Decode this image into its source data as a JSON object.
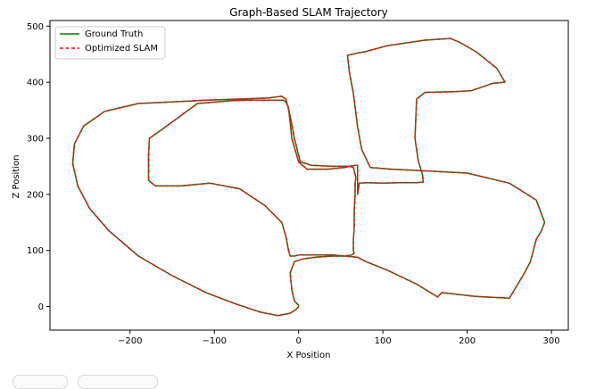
{
  "chart_data": {
    "type": "line",
    "title": "Graph-Based SLAM Trajectory",
    "xlabel": "X Position",
    "ylabel": "Z Position",
    "xlim": [
      -295,
      320
    ],
    "ylim": [
      -42,
      510
    ],
    "xticks": [
      -200,
      -100,
      0,
      100,
      200,
      300
    ],
    "yticks": [
      0,
      100,
      200,
      300,
      400,
      500
    ],
    "grid": false,
    "legend_position": "upper-left",
    "series": [
      {
        "name": "Ground Truth",
        "color": "#008000",
        "style": "solid",
        "x": [
          0,
          -3,
          -10,
          -25,
          -45,
          -75,
          -110,
          -150,
          -190,
          -225,
          -248,
          -262,
          -268,
          -266,
          -255,
          -230,
          -190,
          -150,
          -110,
          -70,
          -35,
          -20,
          -15,
          -10,
          -5,
          0,
          2,
          15,
          40,
          60,
          68,
          70,
          70,
          72,
          80,
          100,
          120,
          140,
          148,
          147,
          142,
          138,
          140,
          150,
          185,
          205,
          215,
          230,
          245,
          235,
          210,
          190,
          180,
          150,
          105,
          80,
          70,
          58,
          60,
          65,
          70,
          75,
          85,
          110,
          150,
          200,
          250,
          282,
          292,
          288,
          282,
          275,
          268,
          250,
          210,
          170,
          165,
          140,
          105,
          80,
          70,
          55,
          40,
          20,
          5,
          0,
          -5,
          -10,
          -12,
          -15,
          -20,
          -40,
          -70,
          -105,
          -140,
          -170,
          -178,
          -178,
          -177,
          -160,
          -120,
          -80,
          -60,
          -25,
          -18,
          -15,
          -12,
          -8,
          0,
          10,
          35,
          55,
          60,
          65,
          68,
          67,
          67,
          66,
          66,
          65,
          65,
          66,
          63,
          55,
          40,
          20,
          5,
          -5,
          -10,
          -8,
          -5,
          0,
          0
        ],
        "y": [
          0,
          -5,
          -12,
          -16,
          -10,
          5,
          25,
          55,
          90,
          135,
          175,
          215,
          255,
          290,
          322,
          348,
          362,
          365,
          368,
          370,
          372,
          375,
          370,
          340,
          300,
          270,
          258,
          252,
          250,
          250,
          252,
          252,
          200,
          220,
          221,
          220,
          221,
          221,
          222,
          235,
          260,
          300,
          370,
          382,
          383,
          385,
          390,
          398,
          400,
          425,
          455,
          472,
          478,
          475,
          465,
          455,
          452,
          448,
          420,
          380,
          320,
          280,
          248,
          245,
          242,
          238,
          220,
          190,
          150,
          135,
          120,
          80,
          60,
          15,
          18,
          25,
          17,
          40,
          65,
          80,
          88,
          90,
          92,
          92,
          92,
          92,
          90,
          90,
          100,
          125,
          150,
          180,
          210,
          220,
          215,
          215,
          225,
          270,
          300,
          318,
          362,
          367,
          368,
          368,
          368,
          365,
          355,
          300,
          258,
          245,
          245,
          248,
          250,
          248,
          230,
          220,
          200,
          170,
          140,
          120,
          100,
          95,
          92,
          90,
          90,
          88,
          85,
          80,
          60,
          30,
          10,
          2,
          0
        ]
      },
      {
        "name": "Optimized SLAM",
        "color": "#e8141a",
        "style": "dashed",
        "x": [
          0,
          -3,
          -10,
          -25,
          -45,
          -75,
          -110,
          -150,
          -190,
          -225,
          -248,
          -262,
          -268,
          -266,
          -255,
          -230,
          -190,
          -150,
          -110,
          -70,
          -35,
          -20,
          -15,
          -10,
          -5,
          0,
          2,
          15,
          40,
          60,
          68,
          70,
          70,
          72,
          80,
          100,
          120,
          140,
          148,
          147,
          142,
          138,
          140,
          150,
          185,
          205,
          215,
          230,
          245,
          235,
          210,
          190,
          180,
          150,
          105,
          80,
          70,
          58,
          60,
          65,
          70,
          75,
          85,
          110,
          150,
          200,
          250,
          282,
          292,
          288,
          282,
          275,
          268,
          250,
          210,
          170,
          165,
          140,
          105,
          80,
          70,
          55,
          40,
          20,
          5,
          0,
          -5,
          -10,
          -12,
          -15,
          -20,
          -40,
          -70,
          -105,
          -140,
          -170,
          -178,
          -178,
          -177,
          -160,
          -120,
          -80,
          -60,
          -25,
          -18,
          -15,
          -12,
          -8,
          0,
          10,
          35,
          55,
          60,
          65,
          68,
          67,
          67,
          66,
          66,
          65,
          65,
          66,
          63,
          55,
          40,
          20,
          5,
          -5,
          -10,
          -8,
          -5,
          0,
          0
        ],
        "y": [
          0,
          -5,
          -12,
          -16,
          -10,
          5,
          25,
          55,
          90,
          135,
          175,
          215,
          255,
          290,
          322,
          348,
          362,
          365,
          368,
          370,
          372,
          375,
          370,
          340,
          300,
          270,
          258,
          252,
          250,
          250,
          252,
          252,
          200,
          220,
          221,
          220,
          221,
          221,
          222,
          235,
          260,
          300,
          370,
          382,
          383,
          385,
          390,
          398,
          400,
          425,
          455,
          472,
          478,
          475,
          465,
          455,
          452,
          448,
          420,
          380,
          320,
          280,
          248,
          245,
          242,
          238,
          220,
          190,
          150,
          135,
          120,
          80,
          60,
          15,
          18,
          25,
          17,
          40,
          65,
          80,
          88,
          90,
          92,
          92,
          92,
          92,
          90,
          90,
          100,
          125,
          150,
          180,
          210,
          220,
          215,
          215,
          225,
          270,
          300,
          318,
          362,
          367,
          368,
          368,
          368,
          365,
          355,
          300,
          258,
          245,
          245,
          248,
          250,
          248,
          230,
          220,
          200,
          170,
          140,
          120,
          100,
          95,
          92,
          90,
          90,
          88,
          85,
          80,
          60,
          30,
          10,
          2,
          0
        ]
      }
    ]
  }
}
